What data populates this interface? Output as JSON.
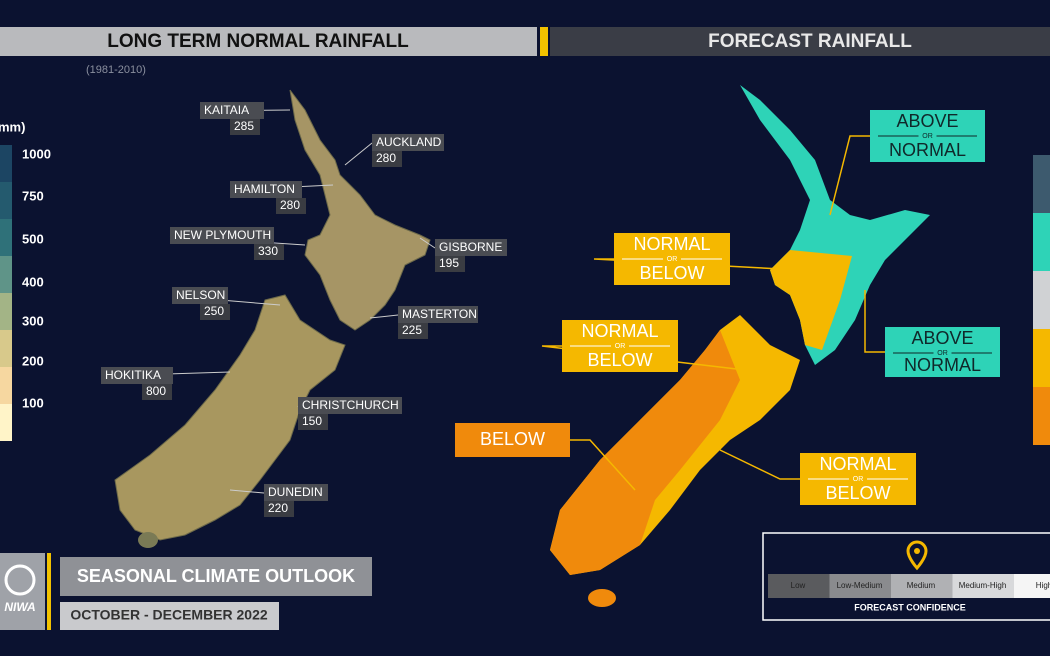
{
  "left_panel": {
    "title": "LONG TERM NORMAL RAINFALL",
    "subtitle": "(1981-2010)",
    "legend_unit": "mm)",
    "legend_ticks": [
      1000,
      750,
      500,
      400,
      300,
      200,
      100
    ],
    "cities": [
      {
        "name": "KAITAIA",
        "value": "285"
      },
      {
        "name": "AUCKLAND",
        "value": "280"
      },
      {
        "name": "HAMILTON",
        "value": "280"
      },
      {
        "name": "NEW PLYMOUTH",
        "value": "330"
      },
      {
        "name": "GISBORNE",
        "value": "195"
      },
      {
        "name": "NELSON",
        "value": "250"
      },
      {
        "name": "MASTERTON",
        "value": "225"
      },
      {
        "name": "HOKITIKA",
        "value": "800"
      },
      {
        "name": "CHRISTCHURCH",
        "value": "150"
      },
      {
        "name": "DUNEDIN",
        "value": "220"
      }
    ]
  },
  "right_panel": {
    "title": "FORECAST RAINFALL",
    "regions": [
      {
        "top": "ABOVE",
        "mid": "OR",
        "bottom": "NORMAL"
      },
      {
        "top": "NORMAL",
        "mid": "OR",
        "bottom": "BELOW"
      },
      {
        "top": "ABOVE",
        "mid": "OR",
        "bottom": "NORMAL"
      },
      {
        "top": "NORMAL",
        "mid": "OR",
        "bottom": "BELOW"
      },
      {
        "top": "BELOW"
      },
      {
        "top": "NORMAL",
        "mid": "OR",
        "bottom": "BELOW"
      }
    ],
    "confidence": {
      "levels": [
        "Low",
        "Low-Medium",
        "Medium",
        "Medium-High",
        "High"
      ],
      "label": "FORECAST CONFIDENCE"
    }
  },
  "footer": {
    "logo": "NIWA",
    "title": "SEASONAL CLIMATE OUTLOOK",
    "period": "OCTOBER - DECEMBER 2022"
  }
}
